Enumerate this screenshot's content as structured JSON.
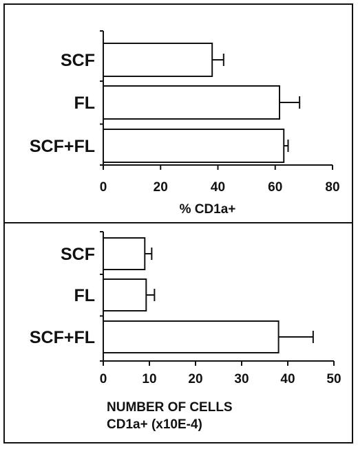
{
  "chart_data": [
    {
      "type": "bar",
      "orientation": "horizontal",
      "categories": [
        "SCF",
        "FL",
        "SCF+FL"
      ],
      "values": [
        38,
        61.5,
        63
      ],
      "errors": [
        4,
        7,
        1.5
      ],
      "xlim": [
        0,
        80
      ],
      "xticks": [
        0,
        20,
        40,
        60,
        80
      ],
      "xlabel": [
        "% CD1a+"
      ],
      "title": "",
      "ylabel": "",
      "grid": false
    },
    {
      "type": "bar",
      "orientation": "horizontal",
      "categories": [
        "SCF",
        "FL",
        "SCF+FL"
      ],
      "values": [
        9,
        9.3,
        38
      ],
      "errors": [
        1.5,
        1.8,
        7.5
      ],
      "xlim": [
        0,
        50
      ],
      "xticks": [
        0,
        10,
        20,
        30,
        40,
        50
      ],
      "xlabel": [
        "NUMBER OF CELLS",
        "CD1a+ (x10E-4)"
      ],
      "title": "",
      "ylabel": "",
      "grid": false
    }
  ],
  "colors": {
    "bar_fill": "#ffffff",
    "stroke": "#111111",
    "background": "#ffffff"
  }
}
